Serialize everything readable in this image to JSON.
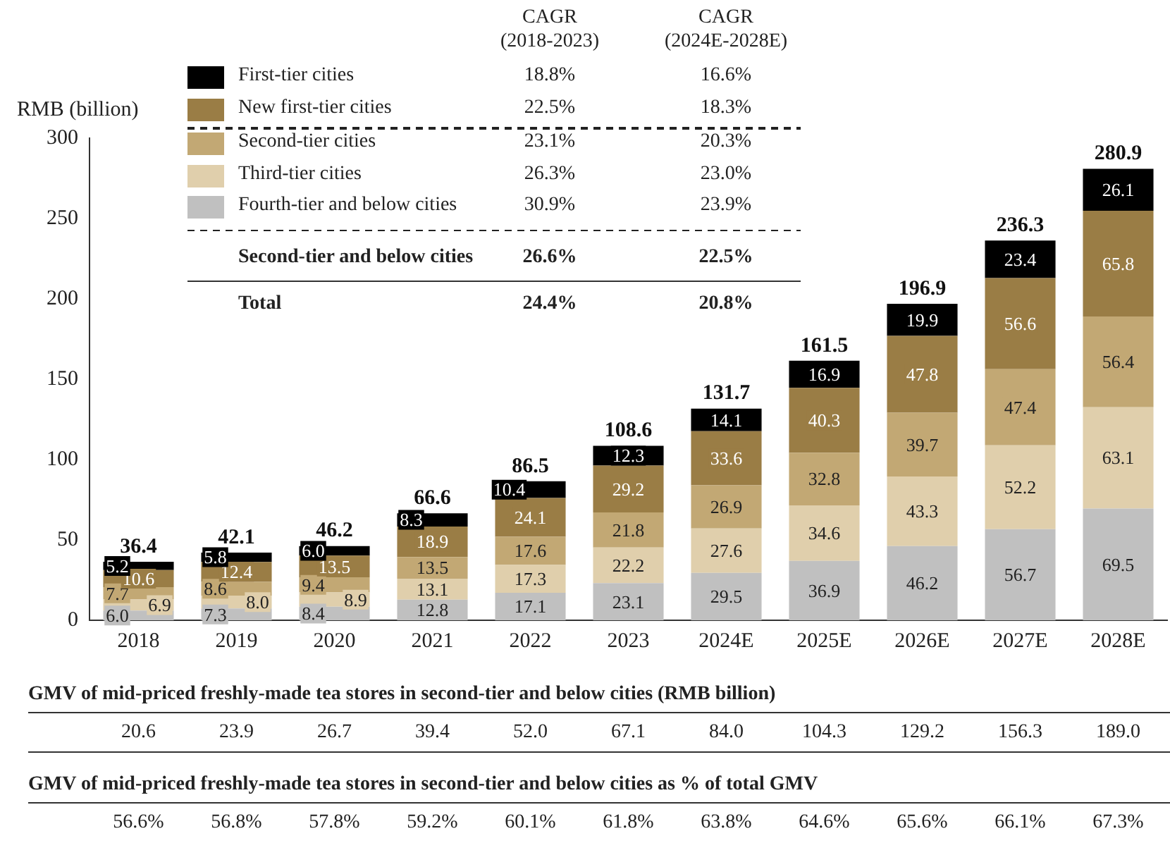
{
  "chart_data": {
    "type": "bar",
    "stacked": true,
    "ylabel": "RMB (billion)",
    "categories": [
      "2018",
      "2019",
      "2020",
      "2021",
      "2022",
      "2023",
      "2024E",
      "2025E",
      "2026E",
      "2027E",
      "2028E"
    ],
    "series": [
      {
        "name": "Fourth-tier and below cities",
        "color": "#c0c0c0",
        "values": [
          6.0,
          7.3,
          8.4,
          12.8,
          17.1,
          23.1,
          29.5,
          36.9,
          46.2,
          56.7,
          69.5
        ],
        "value_labels": [
          "6.0",
          "7.3",
          "8.4",
          "12.8",
          "17.1",
          "23.1",
          "29.5",
          "36.9",
          "46.2",
          "56.7",
          "69.5"
        ]
      },
      {
        "name": "Third-tier cities",
        "color": "#e0cfac",
        "values": [
          6.9,
          8.0,
          8.9,
          13.1,
          17.3,
          22.2,
          27.6,
          34.6,
          43.3,
          52.2,
          63.1
        ],
        "value_labels": [
          "6.9",
          "8.0",
          "8.9",
          "13.1",
          "17.3",
          "22.2",
          "27.6",
          "34.6",
          "43.3",
          "52.2",
          "63.1"
        ]
      },
      {
        "name": "Second-tier cities",
        "color": "#c2a874",
        "values": [
          7.7,
          8.6,
          9.4,
          13.5,
          17.6,
          21.8,
          26.9,
          32.8,
          39.7,
          47.4,
          56.4
        ],
        "value_labels": [
          "7.7",
          "8.6",
          "9.4",
          "13.5",
          "17.6",
          "21.8",
          "26.9",
          "32.8",
          "39.7",
          "47.4",
          "56.4"
        ]
      },
      {
        "name": "New first-tier cities",
        "color": "#9a7d45",
        "values": [
          10.6,
          12.4,
          13.5,
          18.9,
          24.1,
          29.2,
          33.6,
          40.3,
          47.8,
          56.6,
          65.8
        ],
        "value_labels": [
          "10.6",
          "12.4",
          "13.5",
          "18.9",
          "24.1",
          "29.2",
          "33.6",
          "40.3",
          "47.8",
          "56.6",
          "65.8"
        ]
      },
      {
        "name": "First-tier cities",
        "color": "#000000",
        "values": [
          5.2,
          5.8,
          6.0,
          8.3,
          10.4,
          12.3,
          14.1,
          16.9,
          19.9,
          23.4,
          26.1
        ],
        "value_labels": [
          "5.2",
          "5.8",
          "6.0",
          "8.3",
          "10.4",
          "12.3",
          "14.1",
          "16.9",
          "19.9",
          "23.4",
          "26.1"
        ]
      }
    ],
    "totals": [
      "36.4",
      "42.1",
      "46.2",
      "66.6",
      "86.5",
      "108.6",
      "131.7",
      "161.5",
      "196.9",
      "236.3",
      "280.9"
    ],
    "ylim": [
      0,
      300
    ],
    "yticks": [
      0,
      50,
      100,
      150,
      200,
      250,
      300
    ],
    "grid": false,
    "legend": "top left",
    "annotations": [
      "CAGR\n(2018-2023)",
      "CAGR\n(2024E-2028E)",
      "18.8%",
      "16.6%",
      "22.5%",
      "18.3%",
      "23.1%",
      "20.3%",
      "26.3%",
      "23.0%",
      "30.9%",
      "23.9%",
      "Second-tier and below cities",
      "26.6%",
      "22.5%",
      "Total",
      "24.4%",
      "20.8%",
      "GMV of mid-priced freshly-made tea stores in second-tier and below cities (RMB billion)",
      "20.6",
      "23.9",
      "26.7",
      "39.4",
      "52.0",
      "67.1",
      "84.0",
      "104.3",
      "129.2",
      "156.3",
      "189.0",
      "GMV of mid-priced freshly-made tea stores in second-tier and below cities as % of total GMV",
      "56.6%",
      "56.8%",
      "57.8%",
      "59.2%",
      "60.1%",
      "61.8%",
      "63.8%",
      "64.6%",
      "65.6%",
      "66.1%",
      "67.3%"
    ]
  }
}
